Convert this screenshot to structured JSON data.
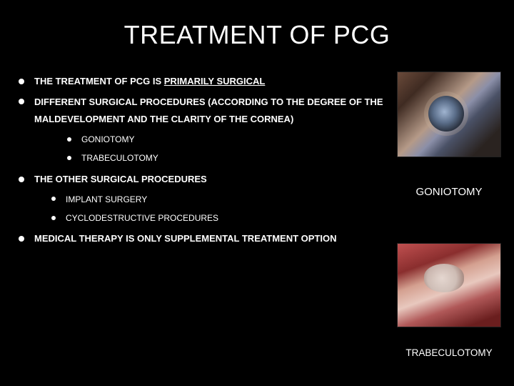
{
  "title": "TREATMENT OF PCG",
  "bullets": {
    "b0_pre": "THE TREATMENT OF PCG  IS ",
    "b0_under": "PRIMARILY SURGICAL",
    "b1": "DIFFERENT SURGICAL PROCEDURES (ACCORDING TO THE DEGREE OF THE MALDEVELOPMENT AND THE CLARITY OF THE CORNEA)",
    "b1_sub0": "GONIOTOMY",
    "b1_sub1": "TRABECULOTOMY",
    "b2": "THE OTHER SURGICAL PROCEDURES",
    "b2_sub0": "IMPLANT SURGERY",
    "b2_sub1": "CYCLODESTRUCTIVE PROCEDURES",
    "b3": "MEDICAL THERAPY IS ONLY SUPPLEMENTAL TREATMENT OPTION"
  },
  "images": {
    "top_caption": "GONIOTOMY",
    "bottom_caption": "TRABECULOTOMY"
  },
  "style": {
    "background": "#000000",
    "text_color": "#ffffff",
    "title_fontsize": 36,
    "body_fontsize": 13,
    "sub_fontsize": 12,
    "font_family": "Verdana",
    "slide_width": 720,
    "slide_height": 540
  }
}
